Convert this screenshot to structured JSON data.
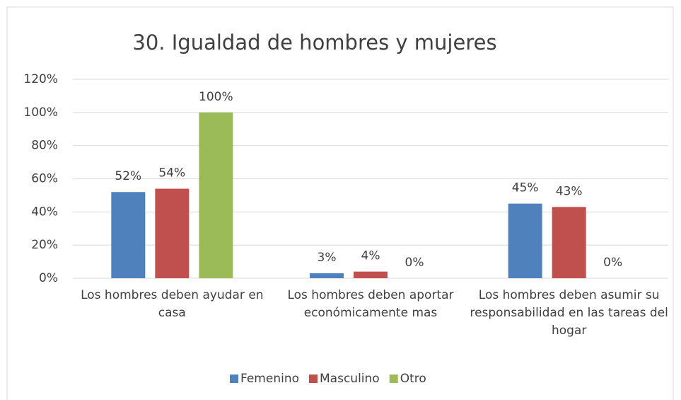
{
  "chart_data": {
    "type": "bar",
    "title": "30. Igualdad de hombres y mujeres",
    "categories": [
      "Los hombres deben ayudar en casa",
      "Los hombres deben aportar económicamente mas",
      "Los hombres deben asumir su responsabilidad en las tareas del hogar"
    ],
    "series": [
      {
        "name": "Femenino",
        "color": "#4f81bd",
        "values": [
          52,
          3,
          45
        ],
        "value_labels": [
          "52%",
          "3%",
          "45%"
        ]
      },
      {
        "name": "Masculino",
        "color": "#c0504d",
        "values": [
          54,
          4,
          43
        ],
        "value_labels": [
          "54%",
          "4%",
          "43%"
        ]
      },
      {
        "name": "Otro",
        "color": "#9bbb59",
        "values": [
          100,
          0,
          0
        ],
        "value_labels": [
          "100%",
          "0%",
          "0%"
        ]
      }
    ],
    "ylim": [
      0,
      120
    ],
    "yticks": [
      {
        "value": 0,
        "label": "0%"
      },
      {
        "value": 20,
        "label": "20%"
      },
      {
        "value": 40,
        "label": "40%"
      },
      {
        "value": 60,
        "label": "60%"
      },
      {
        "value": 80,
        "label": "80%"
      },
      {
        "value": 100,
        "label": "100%"
      },
      {
        "value": 120,
        "label": "120%"
      }
    ],
    "grid": true,
    "legend": "bottom"
  }
}
